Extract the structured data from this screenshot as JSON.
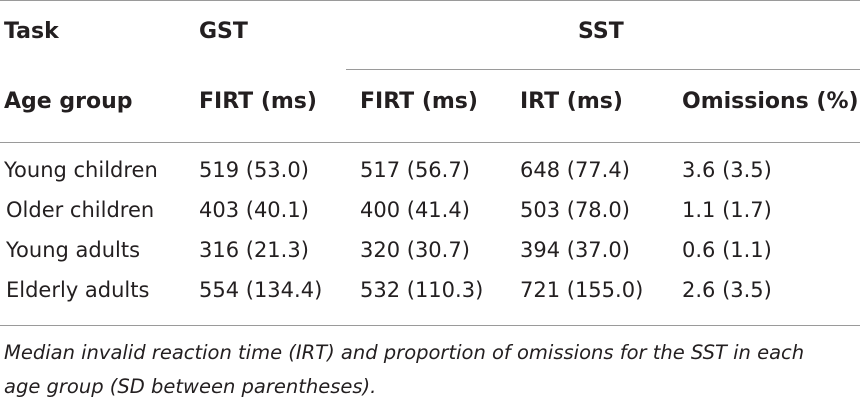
{
  "table": {
    "header_row1": {
      "task": "Task",
      "gst": "GST",
      "sst": "SST"
    },
    "header_row2": {
      "age_group": "Age group",
      "gst_firt": "FIRT (ms)",
      "sst_firt": "FIRT (ms)",
      "irt": "IRT (ms)",
      "omissions": "Omissions (%)"
    },
    "rows": [
      {
        "group": "Young children",
        "gst_firt": "519 (53.0)",
        "sst_firt": "517 (56.7)",
        "irt": "648 (77.4)",
        "omissions": "3.6 (3.5)"
      },
      {
        "group": "Older children",
        "gst_firt": "403 (40.1)",
        "sst_firt": "400 (41.4)",
        "irt": "503 (78.0)",
        "omissions": "1.1 (1.7)"
      },
      {
        "group": "Young adults",
        "gst_firt": "316 (21.3)",
        "sst_firt": "320 (30.7)",
        "irt": "394 (37.0)",
        "omissions": "0.6 (1.1)"
      },
      {
        "group": "Elderly adults",
        "gst_firt": "554 (134.4)",
        "sst_firt": "532 (110.3)",
        "irt": "721 (155.0)",
        "omissions": "2.6 (3.5)"
      }
    ]
  },
  "caption": {
    "line1": "Median invalid reaction time (IRT) and proportion of omissions for the SST in each",
    "line2": "age group (SD between parentheses)."
  }
}
